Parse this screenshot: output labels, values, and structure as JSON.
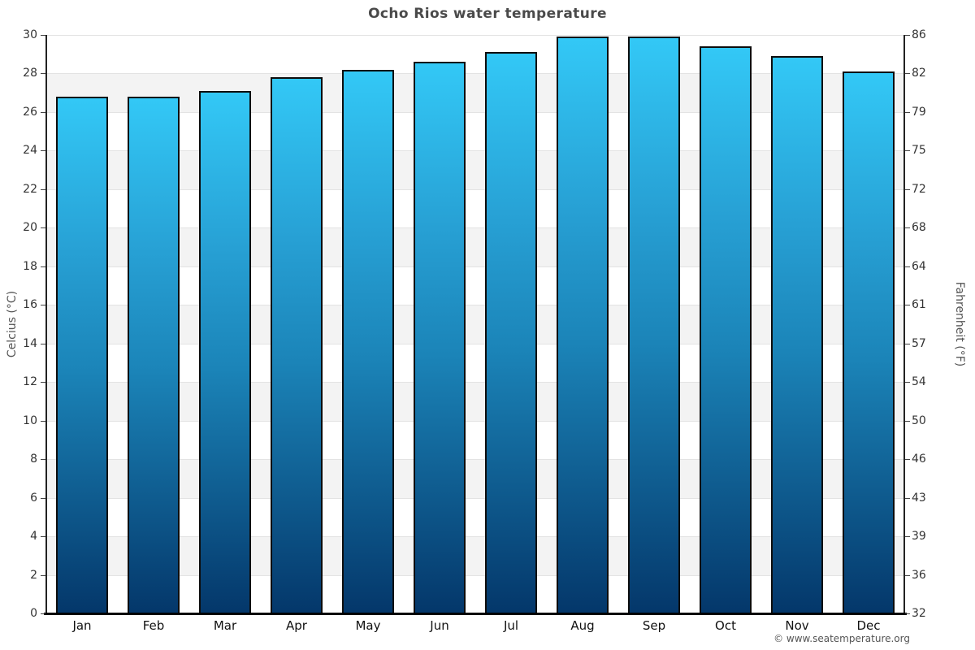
{
  "page": {
    "title": "Ocho Rios water temperature",
    "attribution": "© www.seatemperature.org"
  },
  "chart_data": {
    "type": "bar",
    "title": "Ocho Rios water temperature",
    "categories": [
      "Jan",
      "Feb",
      "Mar",
      "Apr",
      "May",
      "Jun",
      "Jul",
      "Aug",
      "Sep",
      "Oct",
      "Nov",
      "Dec"
    ],
    "values": [
      26.8,
      26.8,
      27.1,
      27.8,
      28.2,
      28.6,
      29.1,
      29.9,
      29.9,
      29.4,
      28.9,
      28.1
    ],
    "xlabel": "",
    "ylabel_left": "Celcius (°C)",
    "ylabel_right": "Fahrenheit (°F)",
    "ylim": [
      0,
      30
    ],
    "yticks_left": [
      0,
      2,
      4,
      6,
      8,
      10,
      12,
      14,
      16,
      18,
      20,
      22,
      24,
      26,
      28,
      30
    ],
    "yticks_right_labels_top_to_bottom": [
      "86",
      "82",
      "79",
      "75",
      "72",
      "68",
      "64",
      "61",
      "57",
      "54",
      "50",
      "46",
      "43",
      "39",
      "36",
      "32"
    ],
    "legend": "none",
    "grid": "alternating horizontal bands every 2 degrees C, light gridlines",
    "colors": {
      "bar_gradient_top": "#33c8f6",
      "bar_gradient_upper_mid": "#27a0d4",
      "bar_gradient_lower_mid": "#1b84b8",
      "bar_gradient_bottom": "#04376a",
      "bar_border": "#0d0d0d",
      "band_light": "#ffffff",
      "band_gray": "#f3f3f3",
      "gridline": "#e3e3e3",
      "axis_line": "#222222",
      "title_text": "#4a4a4a",
      "tick_text": "#333333",
      "axis_label_text": "#555555",
      "attribution_text": "#555555"
    }
  }
}
